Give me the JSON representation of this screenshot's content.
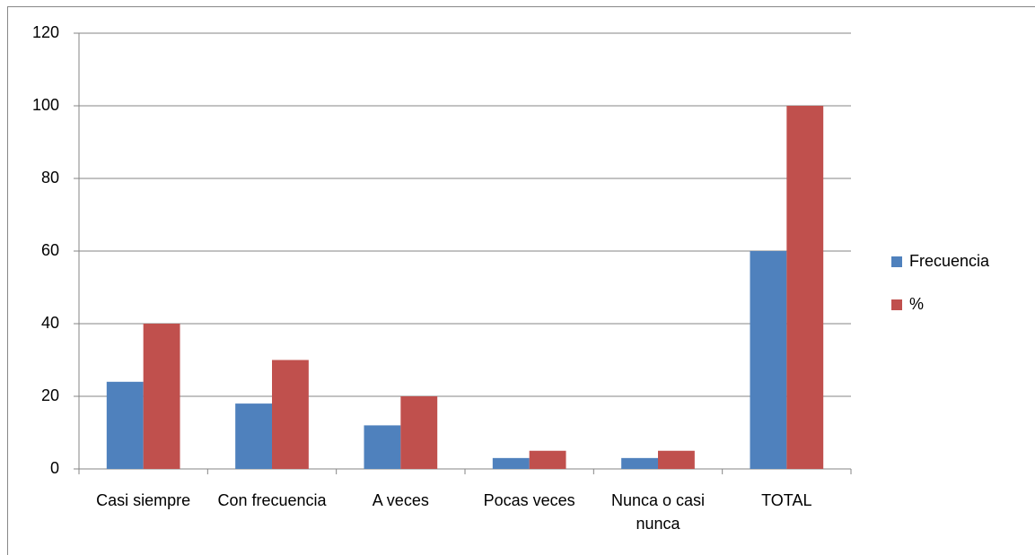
{
  "chart_data": {
    "type": "bar",
    "categories": [
      "Casi siempre",
      "Con frecuencia",
      "A veces",
      "Pocas veces",
      "Nunca o casi nunca",
      "TOTAL"
    ],
    "series": [
      {
        "name": "Frecuencia",
        "color": "#4f81bd",
        "values": [
          24,
          18,
          12,
          3,
          3,
          60
        ]
      },
      {
        "name": "%",
        "color": "#c0504d",
        "values": [
          40,
          30,
          20,
          5,
          5,
          100
        ]
      }
    ],
    "ylim": [
      0,
      120
    ],
    "yticks": [
      0,
      20,
      40,
      60,
      80,
      100,
      120
    ],
    "grid": true,
    "legend": "right"
  }
}
